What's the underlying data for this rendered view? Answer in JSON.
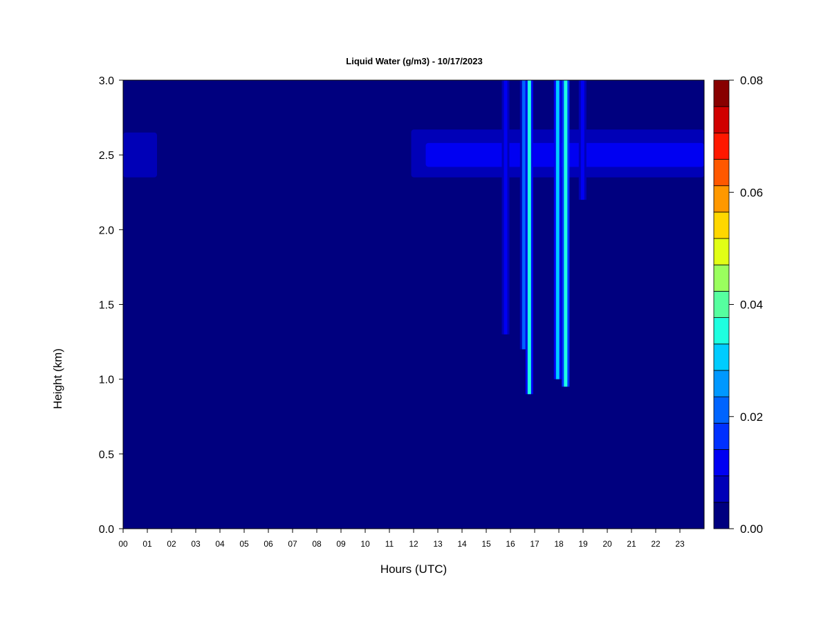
{
  "chart_data": {
    "type": "heatmap",
    "title": "Liquid Water (g/m3) - 10/17/2023",
    "xlabel": "Hours (UTC)",
    "ylabel": "Height (km)",
    "xlim": [
      0,
      24
    ],
    "ylim": [
      0,
      3.0
    ],
    "x_ticks": [
      "00",
      "01",
      "02",
      "03",
      "04",
      "05",
      "06",
      "07",
      "08",
      "09",
      "10",
      "11",
      "12",
      "13",
      "14",
      "15",
      "16",
      "17",
      "18",
      "19",
      "20",
      "21",
      "22",
      "23"
    ],
    "y_ticks": [
      "0.0",
      "0.5",
      "1.0",
      "1.5",
      "2.0",
      "2.5",
      "3.0"
    ],
    "colorbar": {
      "min": 0.0,
      "max": 0.08,
      "ticks": [
        "0.00",
        "0.02",
        "0.04",
        "0.06",
        "0.08"
      ],
      "colors": [
        "#00007f",
        "#0000b7",
        "#0000f2",
        "#0030ff",
        "#0064ff",
        "#0098ff",
        "#00ccff",
        "#1effe0",
        "#56ff9f",
        "#9aff5e",
        "#e1ff16",
        "#ffd700",
        "#ff9800",
        "#ff5800",
        "#ff1800",
        "#d00000",
        "#880000"
      ]
    },
    "background_value": 0.0,
    "features": [
      {
        "kind": "cloud_layer",
        "x_start": 0.0,
        "x_end": 1.4,
        "height_bottom": 2.35,
        "height_top": 2.65,
        "value": 0.006
      },
      {
        "kind": "cloud_layer",
        "x_start": 11.9,
        "x_end": 24.0,
        "height_bottom": 2.35,
        "height_top": 2.67,
        "value": 0.006
      },
      {
        "kind": "cloud_core",
        "x_start": 12.5,
        "x_end": 24.0,
        "height_bottom": 2.42,
        "height_top": 2.58,
        "value": 0.011
      },
      {
        "kind": "column",
        "x_center": 15.8,
        "height_bottom": 1.3,
        "height_top": 3.0,
        "value": 0.013
      },
      {
        "kind": "column",
        "x_center": 16.55,
        "height_bottom": 1.2,
        "height_top": 3.0,
        "value": 0.02
      },
      {
        "kind": "column",
        "x_center": 16.78,
        "height_bottom": 0.9,
        "height_top": 3.0,
        "value": 0.034
      },
      {
        "kind": "column",
        "x_center": 17.95,
        "height_bottom": 1.0,
        "height_top": 3.0,
        "value": 0.03
      },
      {
        "kind": "column",
        "x_center": 18.28,
        "height_bottom": 0.95,
        "height_top": 3.0,
        "value": 0.036
      },
      {
        "kind": "column",
        "x_center": 18.98,
        "height_bottom": 2.2,
        "height_top": 3.0,
        "value": 0.012
      }
    ]
  }
}
